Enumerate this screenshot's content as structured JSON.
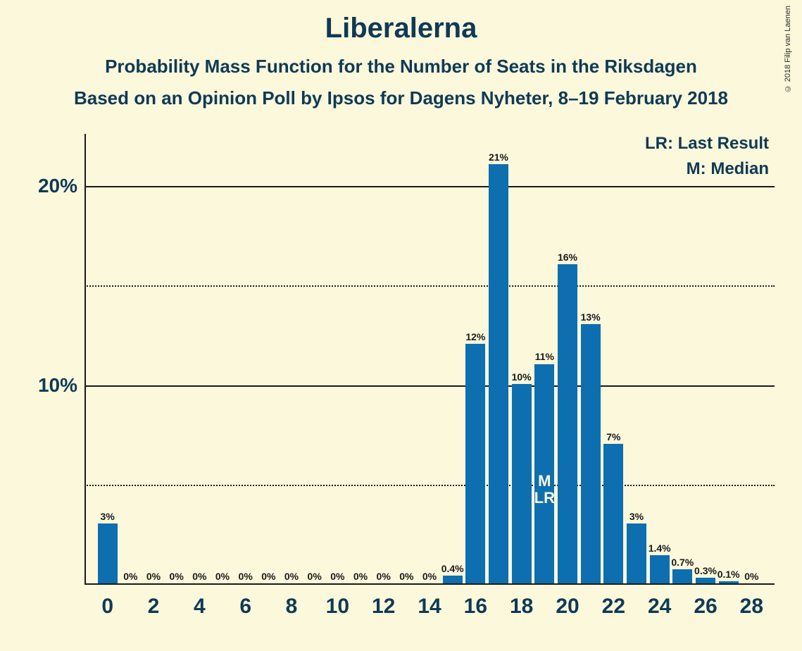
{
  "title": "Liberalerna",
  "subtitle1": "Probability Mass Function for the Number of Seats in the Riksdagen",
  "subtitle2": "Based on an Opinion Poll by Ipsos for Dagens Nyheter, 8–19 February 2018",
  "copyright": "© 2018 Filip van Laenen",
  "legend": {
    "lr": "LR: Last Result",
    "m": "M: Median"
  },
  "chart": {
    "type": "bar",
    "background_color": "#fbf8db",
    "bar_color": "#0d6fb0",
    "axis_color": "#1a1a1a",
    "text_color": "#0f3a56",
    "ylim": [
      0,
      22.6
    ],
    "xlim": [
      -1,
      29
    ],
    "y_major_ticks": [
      10,
      20
    ],
    "y_minor_ticks": [
      5,
      15
    ],
    "x_ticks": [
      0,
      2,
      4,
      6,
      8,
      10,
      12,
      14,
      16,
      18,
      20,
      22,
      24,
      26,
      28
    ],
    "bar_width_ratio": 0.85,
    "label_fontsize": 14,
    "title_fontsize": 40,
    "subtitle_fontsize": 26,
    "axis_label_fontsize": 28,
    "median_at": 19,
    "last_result_at": 19,
    "inner_labels": {
      "m": "M",
      "lr": "LR"
    },
    "data": [
      {
        "x": 0,
        "value": 3,
        "label": "3%"
      },
      {
        "x": 1,
        "value": 0,
        "label": "0%"
      },
      {
        "x": 2,
        "value": 0,
        "label": "0%"
      },
      {
        "x": 3,
        "value": 0,
        "label": "0%"
      },
      {
        "x": 4,
        "value": 0,
        "label": "0%"
      },
      {
        "x": 5,
        "value": 0,
        "label": "0%"
      },
      {
        "x": 6,
        "value": 0,
        "label": "0%"
      },
      {
        "x": 7,
        "value": 0,
        "label": "0%"
      },
      {
        "x": 8,
        "value": 0,
        "label": "0%"
      },
      {
        "x": 9,
        "value": 0,
        "label": "0%"
      },
      {
        "x": 10,
        "value": 0,
        "label": "0%"
      },
      {
        "x": 11,
        "value": 0,
        "label": "0%"
      },
      {
        "x": 12,
        "value": 0,
        "label": "0%"
      },
      {
        "x": 13,
        "value": 0,
        "label": "0%"
      },
      {
        "x": 14,
        "value": 0,
        "label": "0%"
      },
      {
        "x": 15,
        "value": 0.4,
        "label": "0.4%"
      },
      {
        "x": 16,
        "value": 12,
        "label": "12%"
      },
      {
        "x": 17,
        "value": 21,
        "label": "21%"
      },
      {
        "x": 18,
        "value": 10,
        "label": "10%"
      },
      {
        "x": 19,
        "value": 11,
        "label": "11%"
      },
      {
        "x": 20,
        "value": 16,
        "label": "16%"
      },
      {
        "x": 21,
        "value": 13,
        "label": "13%"
      },
      {
        "x": 22,
        "value": 7,
        "label": "7%"
      },
      {
        "x": 23,
        "value": 3,
        "label": "3%"
      },
      {
        "x": 24,
        "value": 1.4,
        "label": "1.4%"
      },
      {
        "x": 25,
        "value": 0.7,
        "label": "0.7%"
      },
      {
        "x": 26,
        "value": 0.3,
        "label": "0.3%"
      },
      {
        "x": 27,
        "value": 0.1,
        "label": "0.1%"
      },
      {
        "x": 28,
        "value": 0,
        "label": "0%"
      }
    ]
  }
}
